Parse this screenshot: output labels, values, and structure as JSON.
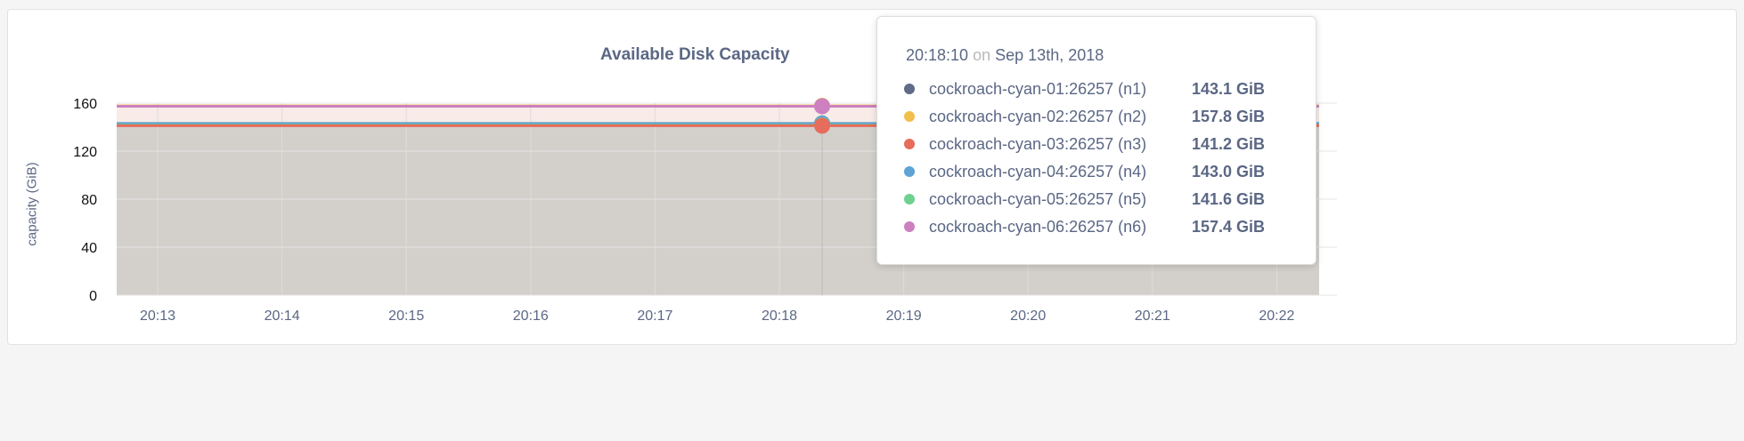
{
  "chart_data": {
    "type": "area",
    "title": "Available Disk Capacity",
    "ylabel": "capacity (GiB)",
    "xlabel": "",
    "ylim": [
      0,
      160
    ],
    "yticks": [
      "0",
      "40",
      "80",
      "120",
      "160"
    ],
    "xticks": [
      "20:13",
      "20:14",
      "20:15",
      "20:16",
      "20:17",
      "20:18",
      "20:19",
      "20:20",
      "20:21",
      "20:22"
    ],
    "grid": true,
    "series": [
      {
        "name": "cockroach-cyan-01:26257 (n1)",
        "color": "#5f6b87",
        "value": 143.1
      },
      {
        "name": "cockroach-cyan-02:26257 (n2)",
        "color": "#f0bf4c",
        "value": 157.8
      },
      {
        "name": "cockroach-cyan-03:26257 (n3)",
        "color": "#e66c5c",
        "value": 141.2
      },
      {
        "name": "cockroach-cyan-04:26257 (n4)",
        "color": "#5da3d6",
        "value": 143.0
      },
      {
        "name": "cockroach-cyan-05:26257 (n5)",
        "color": "#6fd18f",
        "value": 141.6
      },
      {
        "name": "cockroach-cyan-06:26257 (n6)",
        "color": "#cc80c0",
        "value": 157.4
      }
    ]
  },
  "tooltip": {
    "time": "20:18:10",
    "on": "on",
    "date": "Sep 13th, 2018",
    "values": [
      "143.1 GiB",
      "157.8 GiB",
      "141.2 GiB",
      "143.0 GiB",
      "141.6 GiB",
      "157.4 GiB"
    ]
  }
}
